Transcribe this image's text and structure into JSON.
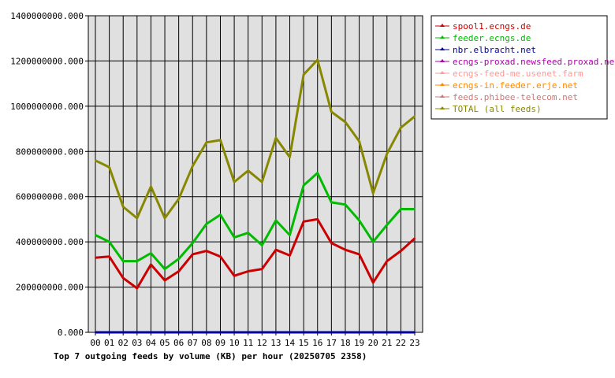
{
  "chart_data": {
    "type": "line",
    "title": "Top 7 outgoing feeds by volume (KB) per hour (20250705 2358)",
    "categories": [
      "00",
      "01",
      "02",
      "03",
      "04",
      "05",
      "06",
      "07",
      "08",
      "09",
      "10",
      "11",
      "12",
      "13",
      "14",
      "15",
      "16",
      "17",
      "18",
      "19",
      "20",
      "21",
      "22",
      "23"
    ],
    "ylim": [
      0,
      1400000000
    ],
    "yticks": [
      "0.000",
      "200000000.000",
      "400000000.000",
      "600000000.000",
      "800000000.000",
      "1000000000.000",
      "1200000000.000",
      "1400000000.000"
    ],
    "grid": true,
    "legend_position": "right",
    "series": [
      {
        "name": "spool1.ecngs.de",
        "color": "#cc0000",
        "values": [
          330000000,
          335000000,
          240000000,
          195000000,
          300000000,
          230000000,
          270000000,
          345000000,
          360000000,
          335000000,
          250000000,
          270000000,
          280000000,
          365000000,
          340000000,
          490000000,
          500000000,
          395000000,
          365000000,
          345000000,
          220000000,
          315000000,
          360000000,
          415000000
        ]
      },
      {
        "name": "feeder.ecngs.de",
        "color": "#00bb00",
        "values": [
          430000000,
          400000000,
          315000000,
          315000000,
          350000000,
          280000000,
          325000000,
          395000000,
          480000000,
          520000000,
          420000000,
          440000000,
          385000000,
          495000000,
          430000000,
          650000000,
          705000000,
          575000000,
          565000000,
          495000000,
          400000000,
          475000000,
          545000000,
          545000000
        ]
      },
      {
        "name": "nbr.elbracht.net",
        "color": "#000099",
        "values": [
          0,
          0,
          0,
          0,
          0,
          0,
          0,
          0,
          0,
          0,
          0,
          0,
          0,
          0,
          0,
          0,
          0,
          0,
          0,
          0,
          0,
          0,
          0,
          0
        ]
      },
      {
        "name": "ecngs-proxad.newsfeed.proxad.net",
        "color": "#aa00aa",
        "values": [
          0,
          0,
          0,
          0,
          0,
          0,
          0,
          0,
          0,
          0,
          0,
          0,
          0,
          0,
          0,
          0,
          0,
          0,
          0,
          0,
          0,
          0,
          0,
          0
        ]
      },
      {
        "name": "ecngs-feed-me.usenet.farm",
        "color": "#ff9999",
        "values": [
          0,
          0,
          0,
          0,
          0,
          0,
          0,
          0,
          0,
          0,
          0,
          0,
          0,
          0,
          0,
          0,
          0,
          0,
          0,
          0,
          0,
          0,
          0,
          0
        ]
      },
      {
        "name": "ecngs-in.feeder.erje.net",
        "color": "#ff8800",
        "values": [
          0,
          0,
          0,
          0,
          0,
          0,
          0,
          0,
          0,
          0,
          0,
          0,
          0,
          0,
          0,
          0,
          0,
          0,
          0,
          0,
          0,
          0,
          0,
          0
        ]
      },
      {
        "name": "feeds.phibee-telecom.net",
        "color": "#cc7777",
        "values": [
          0,
          0,
          0,
          0,
          0,
          0,
          0,
          0,
          0,
          0,
          0,
          0,
          0,
          0,
          0,
          0,
          0,
          0,
          0,
          0,
          0,
          0,
          0,
          0
        ]
      },
      {
        "name": "TOTAL (all feeds)",
        "color": "#888800",
        "values": [
          760000000,
          730000000,
          555000000,
          505000000,
          645000000,
          505000000,
          590000000,
          735000000,
          840000000,
          850000000,
          665000000,
          715000000,
          665000000,
          860000000,
          775000000,
          1140000000,
          1205000000,
          975000000,
          930000000,
          845000000,
          615000000,
          790000000,
          905000000,
          955000000
        ]
      }
    ]
  }
}
